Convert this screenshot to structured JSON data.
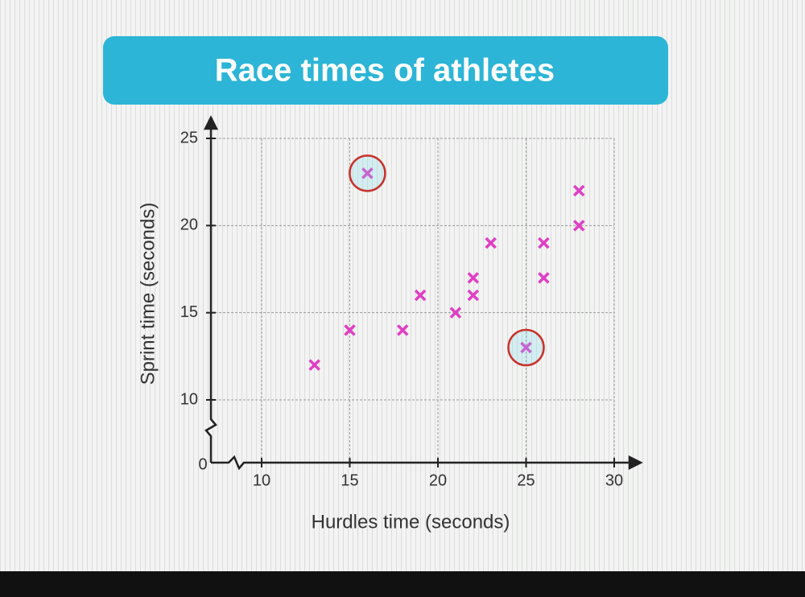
{
  "chart_data": {
    "type": "scatter",
    "title": "Race times of athletes",
    "x_label": "Hurdles time (seconds)",
    "y_label": "Sprint time (seconds)",
    "axis_origin": 0,
    "xlim": [
      10,
      30
    ],
    "xticks": [
      10,
      15,
      20,
      25,
      30
    ],
    "ylim": [
      10,
      25
    ],
    "yticks": [
      10,
      15,
      20,
      25
    ],
    "grid": true,
    "series": [
      {
        "color": "#e03fc4",
        "x": [
          13,
          15,
          16,
          18,
          19,
          21,
          22,
          22,
          23,
          25,
          26,
          26,
          28,
          28
        ],
        "values": [
          12,
          14,
          23,
          14,
          16,
          15,
          16,
          17,
          19,
          13,
          17,
          19,
          20,
          22
        ],
        "highlight": [
          2,
          9
        ],
        "highlight_color": "#c8322a"
      }
    ]
  }
}
